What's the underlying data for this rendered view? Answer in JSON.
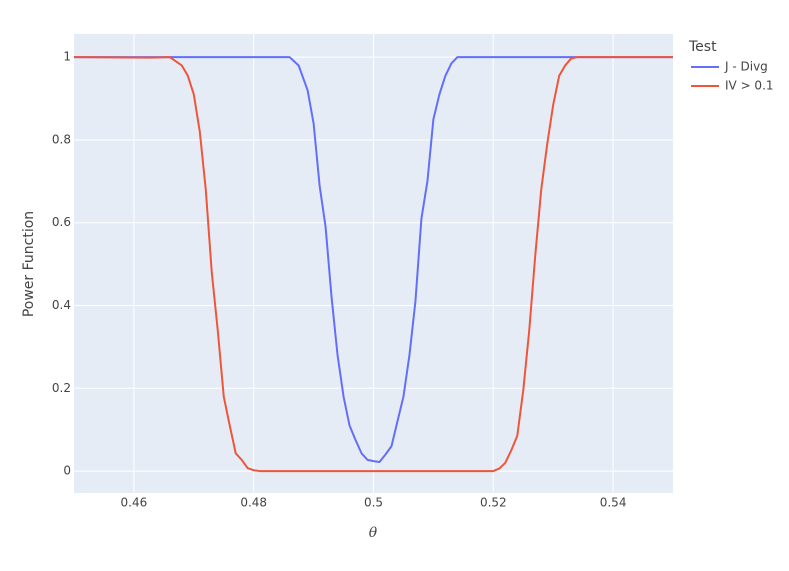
{
  "chart_data": {
    "type": "line",
    "x_label": "θ",
    "y_label": "Power Function",
    "legend_title": "Test",
    "xlim": [
      0.45,
      0.55
    ],
    "ylim": [
      -0.053,
      1.056
    ],
    "xticks": [
      0.46,
      0.48,
      0.5,
      0.52,
      0.54
    ],
    "yticks": [
      0,
      0.2,
      0.4,
      0.6,
      0.8,
      1
    ],
    "grid": true,
    "legend": "right",
    "series": [
      {
        "name": "J - Divg",
        "color": "#636efa",
        "x": [
          0.45,
          0.486,
          0.4875,
          0.489,
          0.49,
          0.491,
          0.492,
          0.493,
          0.494,
          0.495,
          0.496,
          0.497,
          0.498,
          0.499,
          0.5,
          0.501,
          0.502,
          0.503,
          0.504,
          0.505,
          0.506,
          0.507,
          0.508,
          0.509,
          0.51,
          0.511,
          0.512,
          0.513,
          0.514,
          0.55
        ],
        "values": [
          1,
          1,
          0.98,
          0.92,
          0.84,
          0.69,
          0.59,
          0.42,
          0.28,
          0.18,
          0.11,
          0.075,
          0.043,
          0.027,
          0.024,
          0.022,
          0.04,
          0.06,
          0.12,
          0.18,
          0.28,
          0.41,
          0.61,
          0.7,
          0.85,
          0.91,
          0.955,
          0.985,
          1,
          1
        ]
      },
      {
        "name": "IV > 0.1",
        "color": "#EF553B",
        "x": [
          0.45,
          0.463,
          0.466,
          0.467,
          0.468,
          0.469,
          0.47,
          0.471,
          0.472,
          0.473,
          0.474,
          0.475,
          0.476,
          0.477,
          0.478,
          0.479,
          0.48,
          0.481,
          0.52,
          0.521,
          0.522,
          0.523,
          0.524,
          0.525,
          0.526,
          0.527,
          0.528,
          0.529,
          0.53,
          0.531,
          0.532,
          0.533,
          0.534,
          0.55
        ],
        "values": [
          1,
          0.999,
          1,
          0.99,
          0.98,
          0.955,
          0.91,
          0.82,
          0.68,
          0.48,
          0.34,
          0.18,
          0.11,
          0.043,
          0.027,
          0.007,
          0.002,
          0,
          0,
          0.006,
          0.02,
          0.05,
          0.085,
          0.195,
          0.34,
          0.52,
          0.68,
          0.79,
          0.885,
          0.955,
          0.98,
          0.997,
          1,
          1
        ]
      }
    ]
  }
}
